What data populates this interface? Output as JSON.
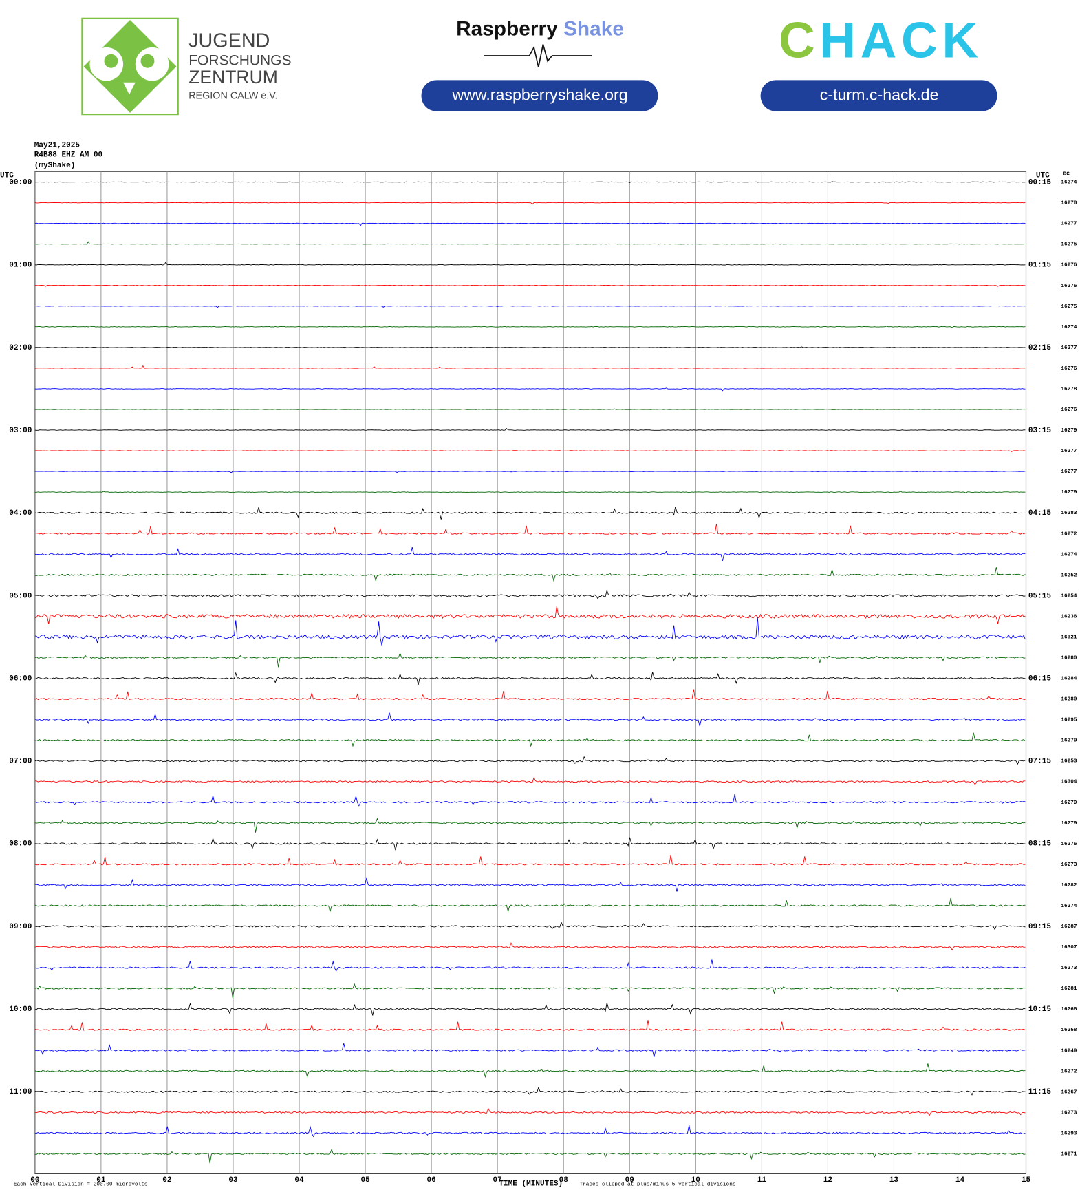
{
  "logos": {
    "jfz": [
      "JUGEND",
      "FORSCHUNGS",
      "ZENTRUM",
      "REGION CALW e.V."
    ],
    "rs_name": "Raspberry",
    "rs_shake": "Shake",
    "rs_url": "www.raspberryshake.org",
    "chack_c": "C",
    "chack_rest": "HACK",
    "chack_url": "c-turm.c-hack.de"
  },
  "chart_data": {
    "type": "helicorder",
    "header": [
      "May21,2025",
      "R4B88 EHZ AM 00",
      "(myShake)"
    ],
    "utc_left": "UTC",
    "utc_right": "UTC",
    "dc_label": "DC",
    "left_labels": [
      "00:00",
      "01:00",
      "02:00",
      "03:00",
      "04:00",
      "05:00",
      "06:00",
      "07:00",
      "08:00",
      "09:00",
      "10:00",
      "11:00"
    ],
    "right_labels": [
      "00:15",
      "01:15",
      "02:15",
      "03:15",
      "04:15",
      "05:15",
      "06:15",
      "07:15",
      "08:15",
      "09:15",
      "10:15",
      "11:15"
    ],
    "dc": [
      16274,
      16278,
      16277,
      16275,
      16276,
      16276,
      16275,
      16274,
      16277,
      16276,
      16278,
      16276,
      16279,
      16277,
      16277,
      16279,
      16283,
      16272,
      16274,
      16252,
      16254,
      16236,
      16321,
      16280,
      16284,
      16280,
      16295,
      16279,
      16253,
      16304,
      16279,
      16279,
      16276,
      16273,
      16282,
      16274,
      16287,
      16307,
      16273,
      16281,
      16266,
      16258,
      16249,
      16272,
      16267,
      16273,
      16293,
      16271
    ],
    "colors": [
      "#000000",
      "#ff0000",
      "#0000ff",
      "#006400"
    ],
    "xlim": [
      0,
      15
    ],
    "xticks": [
      {
        "value": 0,
        "label": "00"
      },
      {
        "value": 1,
        "label": "01"
      },
      {
        "value": 2,
        "label": "02"
      },
      {
        "value": 3,
        "label": "03"
      },
      {
        "value": 4,
        "label": "04"
      },
      {
        "value": 5,
        "label": "05"
      },
      {
        "value": 6,
        "label": "06"
      },
      {
        "value": 7,
        "label": "07"
      },
      {
        "value": 8,
        "label": "08"
      },
      {
        "value": 9,
        "label": "09"
      },
      {
        "value": 10,
        "label": "10"
      },
      {
        "value": 11,
        "label": "11"
      },
      {
        "value": 12,
        "label": "12"
      },
      {
        "value": 13,
        "label": "13"
      },
      {
        "value": 14,
        "label": "14"
      },
      {
        "value": 15,
        "label": "15"
      }
    ],
    "xlabel": "TIME (MINUTES)",
    "footer_left": "Each Vertical Division =  200.00 microvolts",
    "footer_right": "Traces clipped at plus/minus 5 vertical divisions",
    "grid": true
  }
}
